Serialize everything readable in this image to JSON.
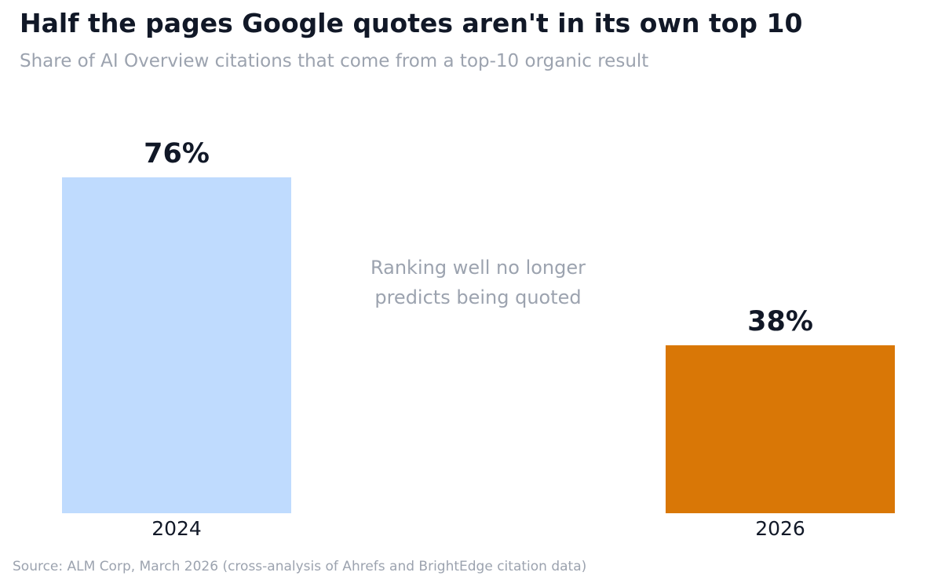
{
  "title": "Half the pages Google quotes aren't in its own top 10",
  "subtitle": "Share of AI Overview citations that come from a top-10 organic result",
  "source": "Source: ALM Corp, March 2026 (cross-analysis of Ahrefs and BrightEdge citation data)",
  "chart_data": {
    "type": "bar",
    "title": "Half the pages Google quotes aren't in its own top 10",
    "subtitle": "Share of AI Overview citations that come from a top-10 organic result",
    "categories": [
      "2024",
      "2026"
    ],
    "values": [
      76,
      38
    ],
    "value_labels": [
      "76%",
      "38%"
    ],
    "unit": "%",
    "colors": [
      "#bfdbfe",
      "#d97706"
    ],
    "ylim": [
      0,
      100
    ],
    "grid": false,
    "legend": "none",
    "annotation": {
      "lines": [
        "Ranking well no longer",
        "predicts being quoted"
      ]
    }
  },
  "colors": {
    "title": "#111827",
    "muted": "#9ca3af",
    "label": "#111827"
  }
}
